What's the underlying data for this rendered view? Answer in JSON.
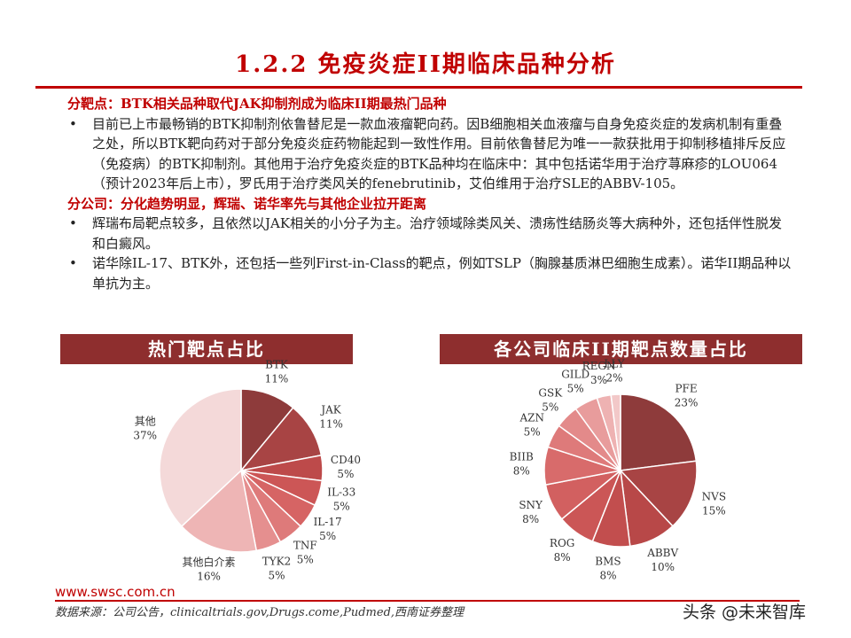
{
  "title": "1.2.2 免疫炎症II期临床品种分析",
  "sections": [
    {
      "heading": "分靶点：BTK相关品种取代JAK抑制剂成为临床II期最热门品种",
      "bullets": [
        "目前已上市最畅销的BTK抑制剂依鲁替尼是一款血液瘤靶向药。因B细胞相关血液瘤与自身免疫炎症的发病机制有重叠之处，所以BTK靶向药对于部分免疫炎症药物能起到一致性作用。目前依鲁替尼为唯一一款获批用于抑制移植排斥反应（免疫病）的BTK抑制剂。其他用于治疗免疫炎症的BTK品种均在临床中：其中包括诺华用于治疗荨麻疹的LOU064（预计2023年后上市），罗氏用于治疗类风关的fenebrutinib，艾伯维用于治疗SLE的ABBV-105。"
      ]
    },
    {
      "heading": "分公司：分化趋势明显，辉瑞、诺华率先与其他企业拉开距离",
      "bullets": [
        "辉瑞布局靶点较多，且依然以JAK相关的小分子为主。治疗领域除类风关、溃疡性结肠炎等大病种外，还包括伴性脱发和白癜风。",
        "诺华除IL-17、BTK外，还包括一些列First-in-Class的靶点，例如TSLP（胸腺基质淋巴细胞生成素）。诺华II期品种以单抗为主。"
      ]
    }
  ],
  "chart_data": [
    {
      "type": "pie",
      "title": "热门靶点占比",
      "categories": [
        "BTK",
        "JAK",
        "CD40",
        "IL-33",
        "IL-17",
        "TNF",
        "TYK2",
        "其他白介素",
        "其他"
      ],
      "values": [
        11,
        11,
        5,
        5,
        5,
        5,
        5,
        16,
        37
      ],
      "value_labels": [
        "11%",
        "11%",
        "5%",
        "5%",
        "5%",
        "5%",
        "5%",
        "16%",
        "37%"
      ],
      "colors": [
        "#8e3b3b",
        "#a84444",
        "#bd4a4a",
        "#cc5656",
        "#d66464",
        "#de7a7a",
        "#e58f8f",
        "#eeb5b5",
        "#f4d9d9"
      ]
    },
    {
      "type": "pie",
      "title": "各公司临床II期靶点数量占比",
      "categories": [
        "PFE",
        "NVS",
        "ABBV",
        "BMS",
        "ROG",
        "SNY",
        "BIIB",
        "AZN",
        "GSK",
        "GILD",
        "REGN",
        "LLY"
      ],
      "values": [
        23,
        15,
        10,
        8,
        8,
        8,
        8,
        5,
        5,
        5,
        3,
        2
      ],
      "value_labels": [
        "23%",
        "15%",
        "10%",
        "8%",
        "8%",
        "8%",
        "8%",
        "5%",
        "5%",
        "5%",
        "3%",
        "2%"
      ],
      "colors": [
        "#8e3b3b",
        "#a84444",
        "#b84848",
        "#c24e4e",
        "#cb5656",
        "#d26060",
        "#d86b6b",
        "#de7a7a",
        "#e38a8a",
        "#e89c9c",
        "#eeb2b2",
        "#f2c8c8"
      ]
    }
  ],
  "footer": {
    "site": "www.swsc.com.cn",
    "source": "数据来源：公司公告，clinicaltrials.gov,Drugs.come,Pudmed,西南证券整理",
    "watermark": "头条 @未来智库"
  }
}
